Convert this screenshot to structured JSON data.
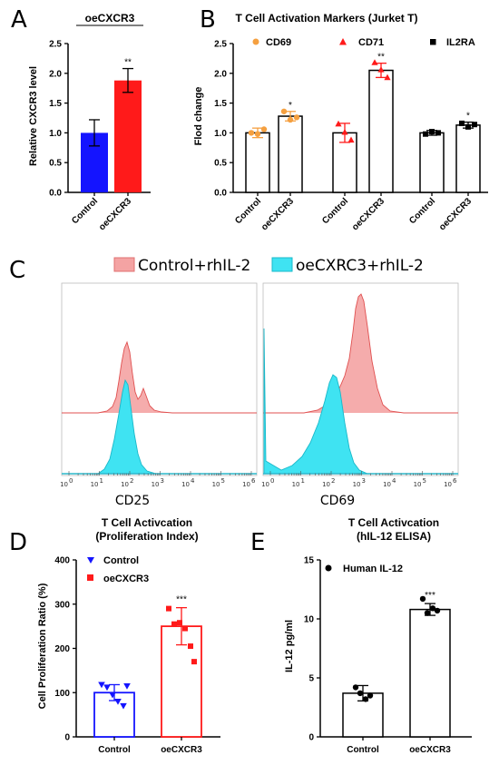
{
  "panel_letters": {
    "a": "A",
    "b": "B",
    "c": "C",
    "d": "D",
    "e": "E"
  },
  "colors": {
    "blue": "#1414ff",
    "red": "#ff1a1a",
    "orange": "#f5a040",
    "pinkFill": "#f4a3a3",
    "pinkLine": "#e05050",
    "cyanFill": "#3fe3f2",
    "cyanLine": "#19b8c9"
  },
  "chart_data": [
    {
      "id": "A",
      "type": "bar",
      "title": "oeCXCR3",
      "ylabel": "Relative CXCR3 level",
      "categories": [
        "Control",
        "oeCXCR3"
      ],
      "values": [
        1.0,
        1.88
      ],
      "errors": [
        0.22,
        0.2
      ],
      "ylim": [
        0,
        2.5
      ],
      "yticks": [
        "0.0",
        "0.5",
        "1.0",
        "1.5",
        "2.0",
        "2.5"
      ],
      "annotations": [
        "",
        "**"
      ]
    },
    {
      "id": "B",
      "type": "bar",
      "title": "T Cell Activation Markers (Jurket T)",
      "ylabel": "Flod change",
      "ylim": [
        0,
        2.5
      ],
      "yticks": [
        "0.0",
        "0.5",
        "1.0",
        "1.5",
        "2.0",
        "2.5"
      ],
      "series": [
        {
          "name": "CD69",
          "categories": [
            "Control",
            "oeCXCR3"
          ],
          "values": [
            1.0,
            1.28
          ],
          "errors": [
            0.08,
            0.08
          ],
          "points": [
            [
              1.0,
              0.98,
              1.06
            ],
            [
              1.36,
              1.22,
              1.26
            ]
          ],
          "annotations": [
            "",
            "*"
          ]
        },
        {
          "name": "CD71",
          "categories": [
            "Control",
            "oeCXCR3"
          ],
          "values": [
            1.0,
            2.05
          ],
          "errors": [
            0.16,
            0.12
          ],
          "points": [
            [
              1.15,
              1.01,
              0.88
            ],
            [
              2.18,
              2.06,
              1.93
            ]
          ],
          "annotations": [
            "",
            "**"
          ]
        },
        {
          "name": "IL2RA",
          "categories": [
            "Control",
            "oeCXCR3"
          ],
          "values": [
            1.0,
            1.13
          ],
          "errors": [
            0.04,
            0.05
          ],
          "points": [
            [
              0.98,
              1.02,
              1.0
            ],
            [
              1.16,
              1.1,
              1.14
            ]
          ],
          "annotations": [
            "",
            "*"
          ]
        }
      ]
    },
    {
      "id": "C",
      "type": "area",
      "title": "",
      "legend": [
        "Control+rhIL-2",
        "oeCXRC3+rhIL-2"
      ],
      "plots": [
        {
          "xlabel": "CD25"
        },
        {
          "xlabel": "CD69"
        }
      ],
      "xtick_base": "10",
      "xtick_exponents": [
        "0",
        "1",
        "2",
        "3",
        "4",
        "5",
        "6"
      ]
    },
    {
      "id": "D",
      "type": "bar",
      "title": "T Cell Activcation",
      "subtitle": "(Proliferation Index)",
      "ylabel": "Cell Proliferation Ratio (%)",
      "ylim": [
        0,
        400
      ],
      "yticks": [
        "0",
        "100",
        "200",
        "300",
        "400"
      ],
      "categories": [
        "Control",
        "oeCXCR3"
      ],
      "values": [
        100,
        250
      ],
      "errors": [
        18,
        42
      ],
      "points": [
        [
          118,
          112,
          95,
          80,
          70,
          115
        ],
        [
          290,
          255,
          258,
          245,
          205,
          170
        ]
      ],
      "legend": [
        "Control",
        "oeCXCR3"
      ],
      "annotations": [
        "",
        "***"
      ]
    },
    {
      "id": "E",
      "type": "bar",
      "title": "T Cell Activcation",
      "subtitle": "(hIL-12 ELISA)",
      "ylabel": "IL-12 pg/ml",
      "ylim": [
        0,
        15
      ],
      "yticks": [
        "0",
        "5",
        "10",
        "15"
      ],
      "categories": [
        "Control",
        "oeCXCR3"
      ],
      "values": [
        3.7,
        10.8
      ],
      "errors": [
        0.65,
        0.5
      ],
      "points": [
        [
          4.2,
          3.7,
          3.2,
          3.5
        ],
        [
          11.7,
          10.5,
          10.9,
          10.7
        ]
      ],
      "legend": [
        "Human IL-12"
      ],
      "annotations": [
        "",
        "***"
      ]
    }
  ]
}
